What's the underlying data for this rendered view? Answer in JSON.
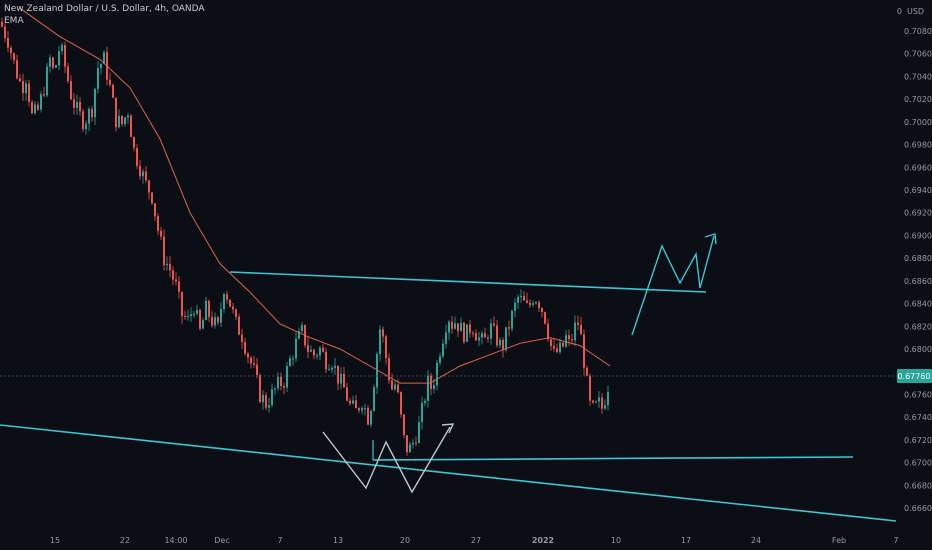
{
  "header": {
    "title": "New Zealand Dollar / U.S. Dollar, 4h, OANDA",
    "indicator": "EMA"
  },
  "colors": {
    "background": "#0c0e15",
    "up": "#26a69a",
    "down": "#ef5350",
    "ema": "#e0604e",
    "drawing": "#3cc6d2",
    "price_tag": "#26a69a",
    "grid_text": "#9598a1"
  },
  "chart_data": {
    "type": "candlestick",
    "title": "New Zealand Dollar / U.S. Dollar, 4h, OANDA",
    "currency_label": "USD",
    "price_axis_ticks": [
      "0.70800",
      "0.70600",
      "0.70400",
      "0.70200",
      "0.70000",
      "0.69800",
      "0.69600",
      "0.69400",
      "0.69200",
      "0.69000",
      "0.68800",
      "0.68600",
      "0.68400",
      "0.68200",
      "0.68000",
      "0.67600",
      "0.67400",
      "0.67200",
      "0.67000",
      "0.66800",
      "0.66600"
    ],
    "time_axis_ticks": [
      "15",
      "22",
      "14:00",
      "Dec",
      "7",
      "13",
      "20",
      "27",
      "2022",
      "10",
      "17",
      "24",
      "Feb",
      "7"
    ],
    "last_price": "0.67760",
    "ylim": [
      0.6648,
      0.711
    ],
    "grid": false,
    "price_path": [
      [
        0,
        0.7088
      ],
      [
        8,
        0.7072
      ],
      [
        16,
        0.7045
      ],
      [
        22,
        0.703
      ],
      [
        26,
        0.704
      ],
      [
        32,
        0.7005
      ],
      [
        38,
        0.701
      ],
      [
        44,
        0.703
      ],
      [
        50,
        0.7055
      ],
      [
        54,
        0.7042
      ],
      [
        60,
        0.7068
      ],
      [
        66,
        0.7045
      ],
      [
        72,
        0.702
      ],
      [
        78,
        0.7008
      ],
      [
        84,
        0.7
      ],
      [
        92,
        0.7012
      ],
      [
        98,
        0.7048
      ],
      [
        104,
        0.7055
      ],
      [
        110,
        0.703
      ],
      [
        116,
        0.7002
      ],
      [
        122,
        0.6998
      ],
      [
        128,
        0.701
      ],
      [
        134,
        0.6975
      ],
      [
        140,
        0.696
      ],
      [
        146,
        0.6945
      ],
      [
        152,
        0.6935
      ],
      [
        158,
        0.6905
      ],
      [
        164,
        0.688
      ],
      [
        170,
        0.687
      ],
      [
        176,
        0.6855
      ],
      [
        182,
        0.683
      ],
      [
        188,
        0.6825
      ],
      [
        194,
        0.6838
      ],
      [
        200,
        0.6815
      ],
      [
        206,
        0.6835
      ],
      [
        212,
        0.6825
      ],
      [
        218,
        0.6818
      ],
      [
        224,
        0.6855
      ],
      [
        230,
        0.684
      ],
      [
        236,
        0.6822
      ],
      [
        242,
        0.6812
      ],
      [
        248,
        0.6795
      ],
      [
        254,
        0.678
      ],
      [
        260,
        0.676
      ],
      [
        266,
        0.6752
      ],
      [
        272,
        0.676
      ],
      [
        278,
        0.6768
      ],
      [
        284,
        0.6772
      ],
      [
        290,
        0.679
      ],
      [
        296,
        0.6805
      ],
      [
        302,
        0.6815
      ],
      [
        308,
        0.68
      ],
      [
        314,
        0.6795
      ],
      [
        320,
        0.68
      ],
      [
        326,
        0.679
      ],
      [
        332,
        0.679
      ],
      [
        338,
        0.6775
      ],
      [
        344,
        0.6765
      ],
      [
        350,
        0.675
      ],
      [
        356,
        0.6745
      ],
      [
        362,
        0.6755
      ],
      [
        368,
        0.674
      ],
      [
        372,
        0.6755
      ],
      [
        376,
        0.679
      ],
      [
        380,
        0.6818
      ],
      [
        384,
        0.6805
      ],
      [
        388,
        0.678
      ],
      [
        392,
        0.6765
      ],
      [
        396,
        0.677
      ],
      [
        400,
        0.6745
      ],
      [
        404,
        0.672
      ],
      [
        408,
        0.671
      ],
      [
        412,
        0.6715
      ],
      [
        416,
        0.6725
      ],
      [
        420,
        0.6735
      ],
      [
        424,
        0.6755
      ],
      [
        428,
        0.677
      ],
      [
        432,
        0.6765
      ],
      [
        436,
        0.6782
      ],
      [
        440,
        0.68
      ],
      [
        444,
        0.6815
      ],
      [
        448,
        0.683
      ],
      [
        452,
        0.6822
      ],
      [
        456,
        0.6825
      ],
      [
        460,
        0.6818
      ],
      [
        466,
        0.6812
      ],
      [
        472,
        0.6822
      ],
      [
        478,
        0.681
      ],
      [
        484,
        0.6805
      ],
      [
        490,
        0.682
      ],
      [
        496,
        0.681
      ],
      [
        502,
        0.68
      ],
      [
        508,
        0.6818
      ],
      [
        514,
        0.6835
      ],
      [
        518,
        0.6845
      ],
      [
        522,
        0.6842
      ],
      [
        528,
        0.6835
      ],
      [
        534,
        0.6848
      ],
      [
        540,
        0.684
      ],
      [
        546,
        0.6825
      ],
      [
        550,
        0.6805
      ],
      [
        554,
        0.6795
      ],
      [
        558,
        0.6798
      ],
      [
        562,
        0.68
      ],
      [
        566,
        0.681
      ],
      [
        570,
        0.6802
      ],
      [
        574,
        0.6818
      ],
      [
        578,
        0.6823
      ],
      [
        582,
        0.6805
      ],
      [
        586,
        0.6775
      ],
      [
        590,
        0.675
      ],
      [
        594,
        0.6745
      ],
      [
        598,
        0.6753
      ],
      [
        602,
        0.6748
      ],
      [
        606,
        0.676
      ],
      [
        610,
        0.6776
      ]
    ],
    "ema_path": [
      [
        20,
        0.71
      ],
      [
        60,
        0.7075
      ],
      [
        100,
        0.7055
      ],
      [
        130,
        0.703
      ],
      [
        160,
        0.6985
      ],
      [
        190,
        0.692
      ],
      [
        220,
        0.6875
      ],
      [
        250,
        0.685
      ],
      [
        280,
        0.6822
      ],
      [
        310,
        0.681
      ],
      [
        340,
        0.68
      ],
      [
        370,
        0.6785
      ],
      [
        400,
        0.677
      ],
      [
        430,
        0.677
      ],
      [
        460,
        0.6785
      ],
      [
        490,
        0.6795
      ],
      [
        520,
        0.6805
      ],
      [
        550,
        0.681
      ],
      [
        580,
        0.6803
      ],
      [
        610,
        0.6785
      ]
    ]
  }
}
